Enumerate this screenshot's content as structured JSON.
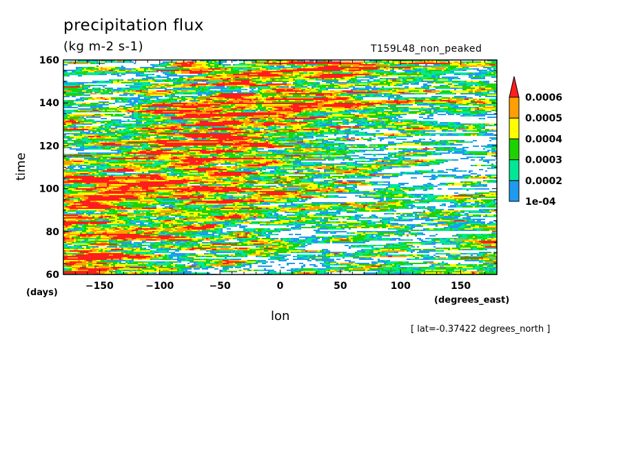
{
  "chart_data": {
    "type": "heatmap",
    "title": "precipitation flux",
    "units": "(kg m-2 s-1)",
    "run_label": "T159L48_non_peaked",
    "xlabel": "lon",
    "x_unit_label": "(degrees_east)",
    "ylabel": "time",
    "y_unit_label": "(days)",
    "annotation": "[ lat=-0.37422 degrees_north ]",
    "xlim": [
      -180,
      180
    ],
    "ylim": [
      60,
      160
    ],
    "x_ticks": [
      -150,
      -100,
      -50,
      0,
      50,
      100,
      150
    ],
    "x_tick_labels": [
      "−150",
      "−100",
      "−50",
      "0",
      "50",
      "100",
      "150"
    ],
    "y_ticks": [
      60,
      80,
      100,
      120,
      140,
      160
    ],
    "y_tick_labels": [
      "60",
      "80",
      "100",
      "120",
      "140",
      "160"
    ],
    "colorbar": {
      "levels": [
        0.0001,
        0.0002,
        0.0003,
        0.0004,
        0.0005,
        0.0006
      ],
      "level_labels": [
        "1e-04",
        "0.0002",
        "0.0003",
        "0.0004",
        "0.0005",
        "0.0006"
      ],
      "colors": [
        "#1e9bef",
        "#00e896",
        "#1ed200",
        "#ffff00",
        "#ff9f00",
        "#ff1e1e"
      ],
      "below_color": "#ffffff",
      "extend": "max",
      "placement": "right"
    }
  }
}
